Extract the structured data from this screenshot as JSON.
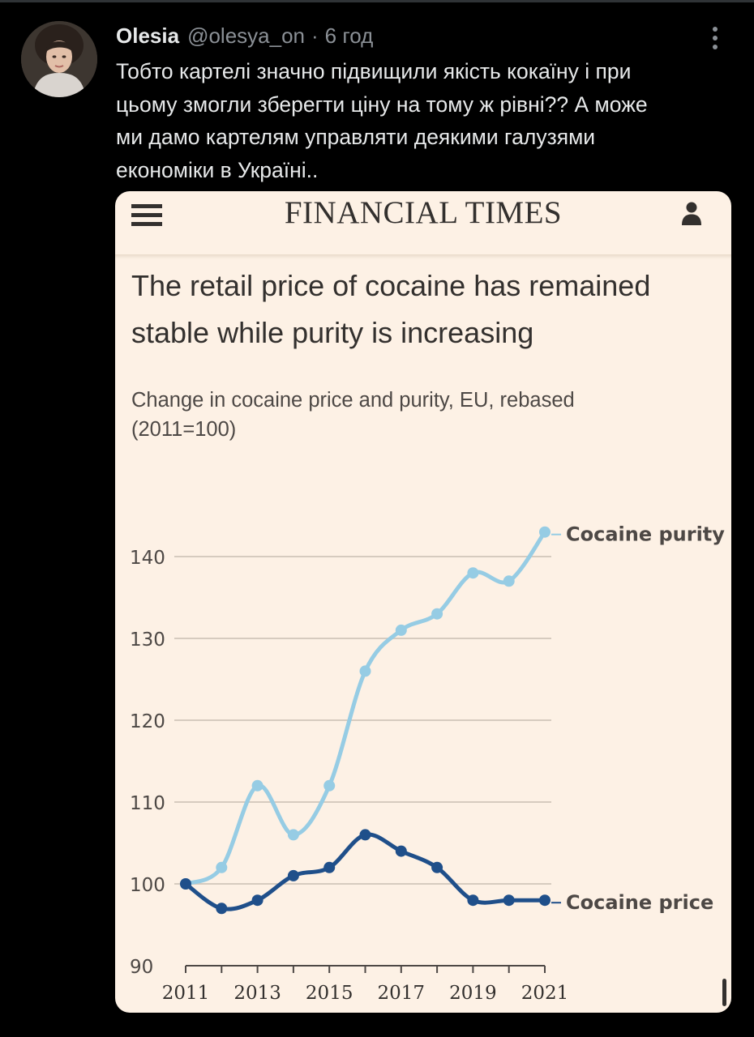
{
  "tweet": {
    "author_name": "Olesia",
    "author_handle": "@olesya_on",
    "separator": "·",
    "time_ago": "6 год",
    "text": "Тобто картелі значно підвищили якість кокаїну і при\nцьому змогли зберегти ціну на тому ж рівні?? А може\nми дамо картелям управляти деякими галузями\nекономіки в Україні..",
    "more_icon": "vertical-dots-icon"
  },
  "ft": {
    "logo": "FINANCIAL TIMES",
    "menu_icon": "hamburger-icon",
    "account_icon": "user-icon"
  },
  "colors": {
    "background": "#000000",
    "card": "#fdf1e5",
    "purity": "#96cce4",
    "price": "#1f4f8a",
    "grid": "#d6cbbf",
    "text_dark": "#33302e"
  },
  "chart_data": {
    "type": "line",
    "title": "The retail price of cocaine has remained stable while purity is increasing",
    "subtitle": "Change in cocaine price and purity, EU, rebased (2011=100)",
    "x": [
      2011,
      2012,
      2013,
      2014,
      2015,
      2016,
      2017,
      2018,
      2019,
      2020,
      2021
    ],
    "x_tick_labels": [
      "2011",
      "2013",
      "2015",
      "2017",
      "2019",
      "2021"
    ],
    "y_ticks": [
      90,
      100,
      110,
      120,
      130,
      140
    ],
    "ylim": [
      90,
      143
    ],
    "grid": true,
    "series": [
      {
        "name": "Cocaine purity",
        "color": "#96cce4",
        "values": [
          100,
          102,
          112,
          106,
          112,
          126,
          131,
          133,
          138,
          137,
          143
        ]
      },
      {
        "name": "Cocaine price",
        "color": "#1f4f8a",
        "values": [
          100,
          97,
          98,
          101,
          102,
          106,
          104,
          102,
          98,
          98,
          98
        ]
      }
    ]
  }
}
